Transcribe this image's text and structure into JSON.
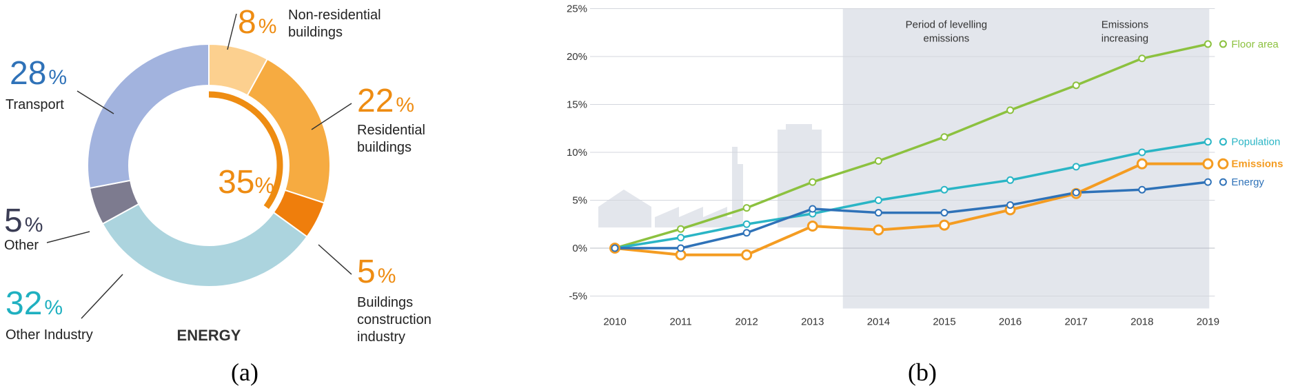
{
  "chart_data": [
    {
      "type": "pie",
      "caption": "(a)",
      "center_label": "ENERGY",
      "energy_share": {
        "value": 35,
        "text": "35",
        "suffix": "%"
      },
      "slices": [
        {
          "name": "Non-residential buildings",
          "label_lines": [
            "Non-residential",
            "buildings"
          ],
          "value": 8,
          "color": "#fcd08f",
          "value_color": "#ee8c12"
        },
        {
          "name": "Residential buildings",
          "label_lines": [
            "Residential",
            "buildings"
          ],
          "value": 22,
          "color": "#f6ab41",
          "value_color": "#ee8c12"
        },
        {
          "name": "Buildings construction industry",
          "label_lines": [
            "Buildings",
            "construction",
            "industry"
          ],
          "value": 5,
          "color": "#ef7e0c",
          "value_color": "#ee8c12"
        },
        {
          "name": "Other Industry",
          "label_lines": [
            "Other Industry"
          ],
          "value": 32,
          "color": "#acd4de",
          "value_color": "#1fb0c0"
        },
        {
          "name": "Other",
          "label_lines": [
            "Other"
          ],
          "value": 5,
          "color": "#7d7b8f",
          "value_color": "#3b3d55"
        },
        {
          "name": "Transport",
          "label_lines": [
            "Transport"
          ],
          "value": 28,
          "color": "#a2b3de",
          "value_color": "#2f72b8"
        }
      ]
    },
    {
      "type": "line",
      "caption": "(b)",
      "x": [
        "2010",
        "2011",
        "2012",
        "2013",
        "2014",
        "2015",
        "2016",
        "2017",
        "2018",
        "2019"
      ],
      "ylim": [
        -5,
        25
      ],
      "yticks": [
        "-5%",
        "0%",
        "5%",
        "10%",
        "15%",
        "20%",
        "25%"
      ],
      "shaded_periods": [
        {
          "label_lines": [
            "Period of levelling",
            "emissions"
          ],
          "from": "2014",
          "to": "2016"
        },
        {
          "label_lines": [
            "Emissions",
            "increasing"
          ],
          "from": "2017",
          "to": "2019"
        }
      ],
      "series": [
        {
          "name": "Floor area",
          "color": "#8cc13f",
          "values": [
            0,
            2.0,
            4.2,
            6.9,
            9.1,
            11.6,
            14.4,
            17.0,
            19.8,
            21.3
          ]
        },
        {
          "name": "Population",
          "color": "#2ab5c5",
          "values": [
            0,
            1.1,
            2.5,
            3.6,
            5.0,
            6.1,
            7.1,
            8.5,
            10.0,
            11.1
          ]
        },
        {
          "name": "Emissions",
          "color": "#f49c22",
          "values": [
            0,
            -0.7,
            -0.7,
            2.3,
            1.9,
            2.4,
            4.0,
            5.7,
            8.8,
            8.8
          ]
        },
        {
          "name": "Energy",
          "color": "#2f72b8",
          "values": [
            0,
            0.0,
            1.6,
            4.1,
            3.7,
            3.7,
            4.5,
            5.8,
            6.1,
            6.9
          ]
        }
      ]
    }
  ]
}
